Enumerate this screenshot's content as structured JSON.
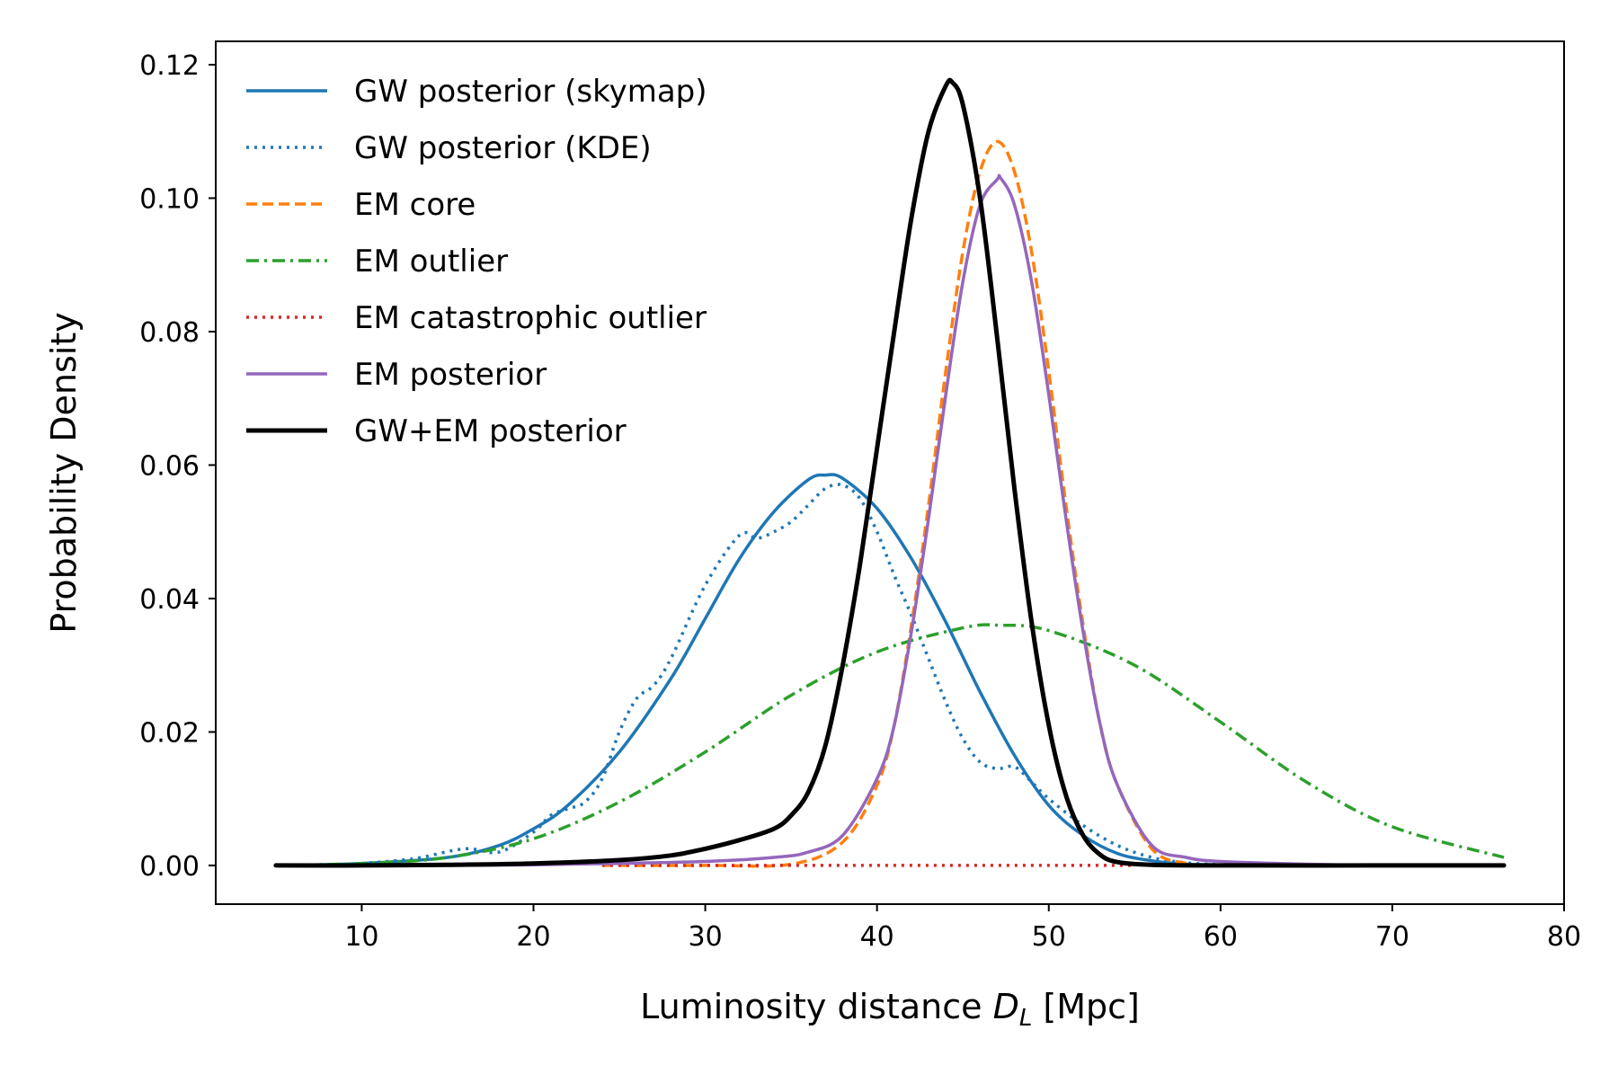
{
  "chart_data": {
    "type": "line",
    "title": "",
    "xlabel": "Luminosity distance",
    "xlabel_symbol": "D",
    "xlabel_subscript": "L",
    "xlabel_unit": "[Mpc]",
    "ylabel": "Probability Density",
    "xlim": [
      1.5,
      80
    ],
    "ylim": [
      -0.0058,
      0.1235
    ],
    "xticks": [
      10,
      20,
      30,
      40,
      50,
      60,
      70,
      80
    ],
    "xtick_labels": [
      "10",
      "20",
      "30",
      "40",
      "50",
      "60",
      "70",
      "80"
    ],
    "yticks": [
      0.0,
      0.02,
      0.04,
      0.06,
      0.08,
      0.1,
      0.12
    ],
    "ytick_labels": [
      "0.00",
      "0.02",
      "0.04",
      "0.06",
      "0.08",
      "0.10",
      "0.12"
    ],
    "grid": false,
    "legend_position": "top-left",
    "series": [
      {
        "name": "GW posterior (skymap)",
        "color": "#1f77b4",
        "style": "solid",
        "x": [
          5,
          10,
          15,
          18,
          20,
          22,
          25,
          28,
          30,
          32,
          34,
          36,
          37,
          38,
          40,
          42,
          44,
          46,
          48,
          50,
          52,
          54,
          56,
          58,
          60,
          65,
          70,
          76.5
        ],
        "y": [
          0.0,
          0.0003,
          0.0012,
          0.003,
          0.0055,
          0.009,
          0.017,
          0.028,
          0.037,
          0.046,
          0.053,
          0.0578,
          0.0585,
          0.058,
          0.0535,
          0.046,
          0.0365,
          0.026,
          0.0165,
          0.009,
          0.0045,
          0.0018,
          0.0007,
          0.0002,
          0.0001,
          0.0,
          0.0,
          0.0
        ]
      },
      {
        "name": "GW posterior (KDE)",
        "color": "#1f77b4",
        "style": "dotted",
        "x": [
          10,
          13,
          16,
          18,
          20,
          21,
          22,
          23,
          24,
          25,
          26,
          27,
          28,
          30,
          32,
          33,
          34,
          35,
          36,
          37,
          38,
          39,
          40,
          41,
          42,
          43,
          44,
          45,
          46,
          47,
          48,
          49,
          50,
          52,
          54,
          56,
          58,
          60
        ],
        "y": [
          0.0003,
          0.001,
          0.0025,
          0.002,
          0.005,
          0.0075,
          0.0085,
          0.0095,
          0.013,
          0.02,
          0.025,
          0.027,
          0.031,
          0.042,
          0.0495,
          0.049,
          0.05,
          0.0515,
          0.054,
          0.0565,
          0.057,
          0.055,
          0.05,
          0.0435,
          0.0375,
          0.031,
          0.0245,
          0.019,
          0.0155,
          0.0145,
          0.0148,
          0.0125,
          0.01,
          0.006,
          0.003,
          0.0012,
          0.0004,
          0.0001
        ]
      },
      {
        "name": "EM core",
        "color": "#ff7f0e",
        "style": "dashed",
        "x": [
          24,
          30,
          35,
          38,
          40,
          41,
          42,
          43,
          44,
          45,
          46,
          47,
          48,
          49,
          50,
          51,
          52,
          53,
          54,
          56,
          58,
          60
        ],
        "y": [
          0.0,
          0.0,
          0.0002,
          0.0035,
          0.012,
          0.021,
          0.036,
          0.054,
          0.074,
          0.092,
          0.104,
          0.1085,
          0.104,
          0.092,
          0.074,
          0.054,
          0.036,
          0.021,
          0.012,
          0.0025,
          0.0003,
          0.0
        ]
      },
      {
        "name": "EM outlier",
        "color": "#2ca02c",
        "style": "dashdot",
        "x": [
          5,
          10,
          15,
          20,
          25,
          30,
          35,
          40,
          45,
          47.2,
          50,
          55,
          60,
          65,
          70,
          76.5
        ],
        "y": [
          0.0,
          0.0003,
          0.0012,
          0.004,
          0.0095,
          0.017,
          0.0255,
          0.032,
          0.0356,
          0.036,
          0.0352,
          0.03,
          0.0215,
          0.0125,
          0.0058,
          0.0012
        ]
      },
      {
        "name": "EM catastrophic outlier",
        "color": "#d62728",
        "style": "dotted",
        "x": [
          24,
          30,
          35,
          40,
          45,
          50,
          55
        ],
        "y": [
          0.0,
          0.0,
          0.0,
          0.0,
          0.0,
          0.0,
          0.0
        ]
      },
      {
        "name": "EM posterior",
        "color": "#9467bd",
        "style": "solid",
        "x": [
          5,
          10,
          15,
          20,
          25,
          30,
          34,
          36,
          38,
          40,
          41,
          42,
          43,
          44,
          45,
          46,
          47,
          47.2,
          48,
          49,
          50,
          51,
          52,
          53,
          54,
          56,
          58,
          60,
          65,
          70,
          76.5
        ],
        "y": [
          0.0,
          0.0,
          0.0,
          0.0001,
          0.0003,
          0.0006,
          0.0012,
          0.002,
          0.0045,
          0.013,
          0.021,
          0.035,
          0.052,
          0.0705,
          0.0875,
          0.099,
          0.1028,
          0.103,
          0.099,
          0.0875,
          0.0705,
          0.052,
          0.035,
          0.021,
          0.012,
          0.003,
          0.0012,
          0.0006,
          0.0002,
          0.0,
          0.0
        ]
      },
      {
        "name": "GW+EM posterior",
        "color": "#000000",
        "style": "solid",
        "x": [
          5,
          10,
          15,
          20,
          25,
          28,
          30,
          32,
          34,
          35,
          36,
          37,
          38,
          39,
          40,
          41,
          42,
          43,
          44,
          44.4,
          45,
          46,
          47,
          48,
          49,
          50,
          51,
          52,
          53,
          54,
          56,
          60,
          70,
          76.5
        ],
        "y": [
          0.0,
          0.0,
          0.0001,
          0.0003,
          0.0008,
          0.0015,
          0.0025,
          0.0038,
          0.0055,
          0.0075,
          0.011,
          0.018,
          0.03,
          0.045,
          0.0625,
          0.08,
          0.097,
          0.11,
          0.1168,
          0.1173,
          0.114,
          0.1,
          0.079,
          0.0565,
          0.0365,
          0.021,
          0.0105,
          0.0045,
          0.0016,
          0.0005,
          0.0001,
          0.0,
          0.0,
          0.0
        ]
      }
    ]
  }
}
